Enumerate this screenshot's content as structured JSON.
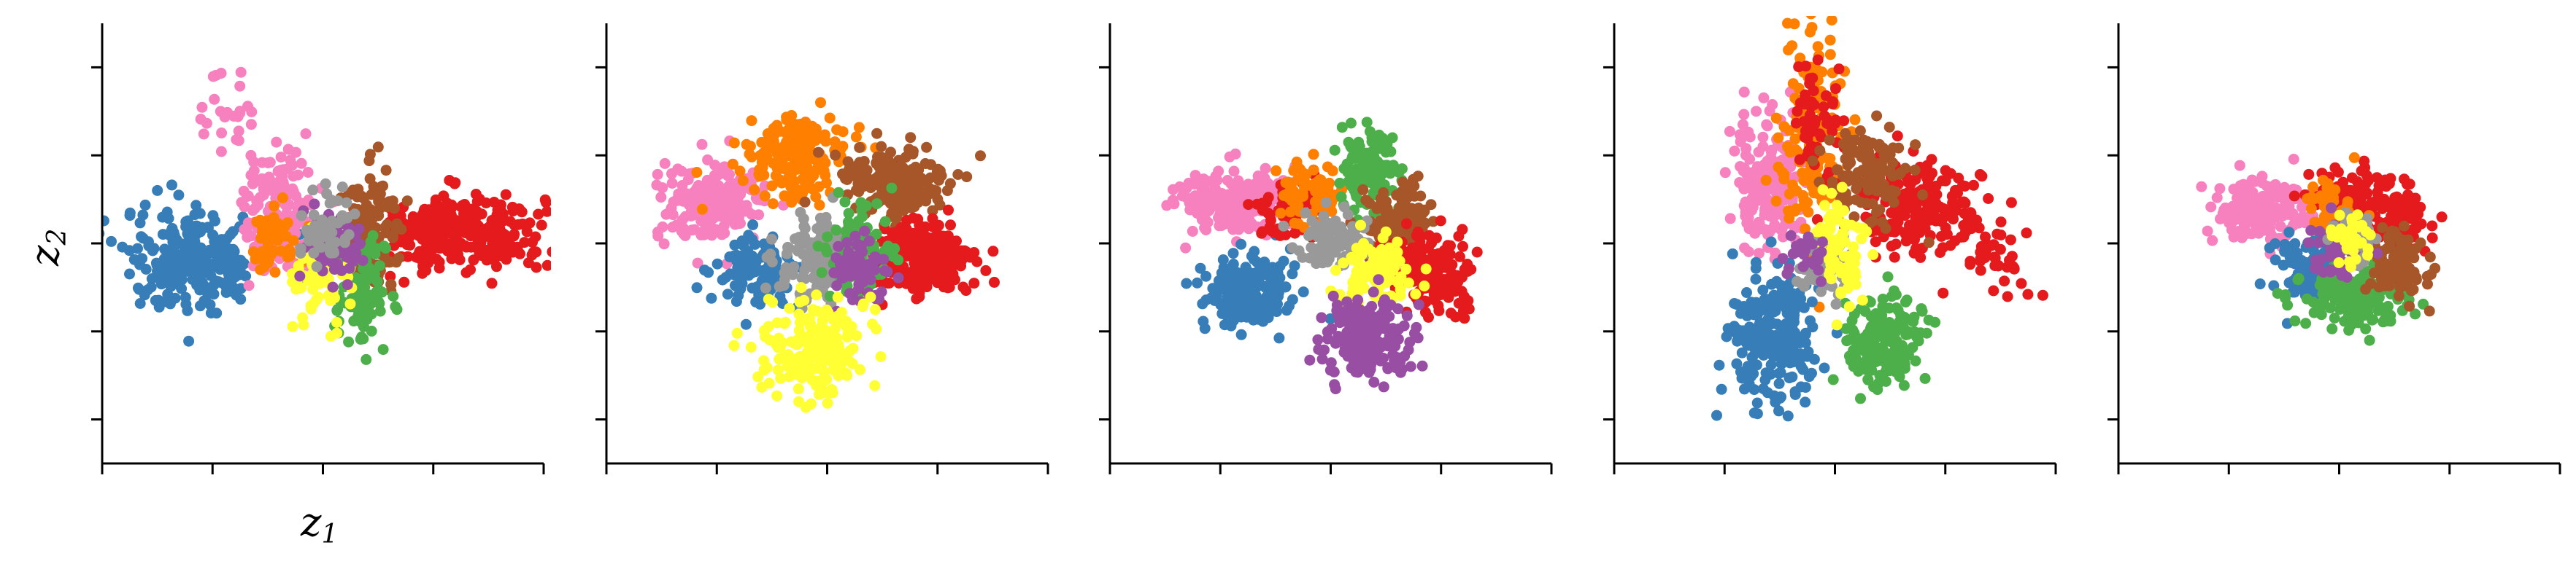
{
  "figure": {
    "xlabel_main": "z",
    "xlabel_sub": "1",
    "ylabel_main": "z",
    "ylabel_sub": "2"
  },
  "colors": {
    "red": "#e41a1c",
    "blue": "#377eb8",
    "green": "#4daf4a",
    "purple": "#984ea3",
    "orange": "#ff7f00",
    "yellow": "#ffff33",
    "brown": "#a65628",
    "pink": "#f781bf",
    "grey": "#999999"
  },
  "chart_data": [
    {
      "type": "scatter",
      "title": "",
      "xlabel": "z1",
      "ylabel": "z2",
      "xlim": [
        -4,
        4
      ],
      "ylim": [
        -4,
        4
      ],
      "grid": false,
      "clusters": [
        {
          "color": "red",
          "cx": 2.4,
          "cy": 0.2,
          "sx": 0.8,
          "sy": 0.35,
          "n": 320
        },
        {
          "color": "blue",
          "cx": -2.3,
          "cy": -0.3,
          "sx": 0.65,
          "sy": 0.45,
          "n": 260
        },
        {
          "color": "pink",
          "cx": -0.8,
          "cy": 0.6,
          "sx": 0.35,
          "sy": 0.55,
          "n": 150
        },
        {
          "color": "pink",
          "cx": -1.7,
          "cy": 2.4,
          "sx": 0.25,
          "sy": 0.4,
          "n": 25
        },
        {
          "color": "brown",
          "cx": 0.9,
          "cy": 0.2,
          "sx": 0.28,
          "sy": 0.55,
          "n": 130
        },
        {
          "color": "green",
          "cx": 0.7,
          "cy": -0.9,
          "sx": 0.22,
          "sy": 0.45,
          "n": 110
        },
        {
          "color": "orange",
          "cx": -0.9,
          "cy": 0.0,
          "sx": 0.25,
          "sy": 0.35,
          "n": 60
        },
        {
          "color": "yellow",
          "cx": 0.0,
          "cy": -0.6,
          "sx": 0.25,
          "sy": 0.4,
          "n": 60
        },
        {
          "color": "purple",
          "cx": 0.2,
          "cy": 0.0,
          "sx": 0.25,
          "sy": 0.35,
          "n": 70
        },
        {
          "color": "grey",
          "cx": 0.1,
          "cy": 0.3,
          "sx": 0.25,
          "sy": 0.3,
          "n": 50
        }
      ]
    },
    {
      "type": "scatter",
      "title": "",
      "xlabel": "",
      "ylabel": "",
      "xlim": [
        -4,
        4
      ],
      "ylim": [
        -4,
        4
      ],
      "grid": false,
      "clusters": [
        {
          "color": "pink",
          "cx": -2.1,
          "cy": 0.7,
          "sx": 0.5,
          "sy": 0.35,
          "n": 190
        },
        {
          "color": "orange",
          "cx": -0.5,
          "cy": 1.6,
          "sx": 0.45,
          "sy": 0.35,
          "n": 190
        },
        {
          "color": "brown",
          "cx": 1.2,
          "cy": 1.1,
          "sx": 0.5,
          "sy": 0.35,
          "n": 190
        },
        {
          "color": "red",
          "cx": 1.7,
          "cy": -0.3,
          "sx": 0.5,
          "sy": 0.35,
          "n": 240
        },
        {
          "color": "blue",
          "cx": -1.3,
          "cy": -0.5,
          "sx": 0.35,
          "sy": 0.3,
          "n": 110
        },
        {
          "color": "grey",
          "cx": -0.1,
          "cy": -0.3,
          "sx": 0.4,
          "sy": 0.4,
          "n": 130
        },
        {
          "color": "green",
          "cx": 0.6,
          "cy": -0.1,
          "sx": 0.3,
          "sy": 0.4,
          "n": 90
        },
        {
          "color": "purple",
          "cx": 0.5,
          "cy": -0.5,
          "sx": 0.25,
          "sy": 0.3,
          "n": 70
        },
        {
          "color": "yellow",
          "cx": -0.2,
          "cy": -1.9,
          "sx": 0.45,
          "sy": 0.45,
          "n": 200
        }
      ]
    },
    {
      "type": "scatter",
      "title": "",
      "xlabel": "",
      "ylabel": "",
      "xlim": [
        -4,
        4
      ],
      "ylim": [
        -4,
        4
      ],
      "grid": false,
      "clusters": [
        {
          "color": "pink",
          "cx": -1.8,
          "cy": 0.8,
          "sx": 0.5,
          "sy": 0.3,
          "n": 190
        },
        {
          "color": "blue",
          "cx": -1.5,
          "cy": -0.9,
          "sx": 0.4,
          "sy": 0.35,
          "n": 170
        },
        {
          "color": "red",
          "cx": -0.8,
          "cy": 0.6,
          "sx": 0.25,
          "sy": 0.3,
          "n": 60
        },
        {
          "color": "orange",
          "cx": -0.4,
          "cy": 0.9,
          "sx": 0.3,
          "sy": 0.3,
          "n": 70
        },
        {
          "color": "green",
          "cx": 0.7,
          "cy": 1.4,
          "sx": 0.25,
          "sy": 0.35,
          "n": 110
        },
        {
          "color": "brown",
          "cx": 1.2,
          "cy": 0.3,
          "sx": 0.35,
          "sy": 0.35,
          "n": 120
        },
        {
          "color": "red",
          "cx": 1.9,
          "cy": -0.5,
          "sx": 0.4,
          "sy": 0.35,
          "n": 160
        },
        {
          "color": "grey",
          "cx": 0.0,
          "cy": 0.1,
          "sx": 0.3,
          "sy": 0.25,
          "n": 80
        },
        {
          "color": "yellow",
          "cx": 0.8,
          "cy": -0.5,
          "sx": 0.35,
          "sy": 0.3,
          "n": 110
        },
        {
          "color": "purple",
          "cx": 0.7,
          "cy": -1.7,
          "sx": 0.4,
          "sy": 0.35,
          "n": 200
        }
      ]
    },
    {
      "type": "scatter",
      "title": "",
      "xlabel": "",
      "ylabel": "",
      "xlim": [
        -4,
        4
      ],
      "ylim": [
        -4,
        4
      ],
      "grid": false,
      "clusters": [
        {
          "color": "pink",
          "cx": -1.2,
          "cy": 1.1,
          "sx": 0.35,
          "sy": 0.6,
          "n": 190
        },
        {
          "color": "orange",
          "cx": -0.4,
          "cy": 1.9,
          "sx": 0.3,
          "sy": 0.9,
          "n": 170
        },
        {
          "color": "red",
          "cx": 1.5,
          "cy": 0.7,
          "sx": 0.55,
          "sy": 0.4,
          "n": 200
        },
        {
          "color": "red",
          "cx": 3.0,
          "cy": -0.3,
          "sx": 0.45,
          "sy": 0.35,
          "n": 40
        },
        {
          "color": "red",
          "cx": -0.3,
          "cy": 2.2,
          "sx": 0.2,
          "sy": 0.6,
          "n": 60
        },
        {
          "color": "brown",
          "cx": 0.6,
          "cy": 1.2,
          "sx": 0.35,
          "sy": 0.45,
          "n": 120
        },
        {
          "color": "blue",
          "cx": -1.1,
          "cy": -1.7,
          "sx": 0.4,
          "sy": 0.6,
          "n": 240
        },
        {
          "color": "green",
          "cx": 0.9,
          "cy": -1.8,
          "sx": 0.35,
          "sy": 0.4,
          "n": 170
        },
        {
          "color": "grey",
          "cx": -0.2,
          "cy": -0.4,
          "sx": 0.25,
          "sy": 0.3,
          "n": 70
        },
        {
          "color": "yellow",
          "cx": 0.1,
          "cy": 0.0,
          "sx": 0.2,
          "sy": 0.5,
          "n": 70
        },
        {
          "color": "purple",
          "cx": -0.5,
          "cy": -0.2,
          "sx": 0.2,
          "sy": 0.2,
          "n": 25
        }
      ]
    },
    {
      "type": "scatter",
      "title": "",
      "xlabel": "",
      "ylabel": "",
      "xlim": [
        -4,
        4
      ],
      "ylim": [
        -4,
        4
      ],
      "grid": false,
      "clusters": [
        {
          "color": "pink",
          "cx": -1.4,
          "cy": 0.6,
          "sx": 0.45,
          "sy": 0.3,
          "n": 180
        },
        {
          "color": "red",
          "cx": 0.2,
          "cy": 0.8,
          "sx": 0.4,
          "sy": 0.3,
          "n": 120
        },
        {
          "color": "red",
          "cx": 1.0,
          "cy": 0.4,
          "sx": 0.3,
          "sy": 0.3,
          "n": 80
        },
        {
          "color": "orange",
          "cx": -0.1,
          "cy": 0.5,
          "sx": 0.25,
          "sy": 0.3,
          "n": 60
        },
        {
          "color": "blue",
          "cx": -0.5,
          "cy": -0.5,
          "sx": 0.35,
          "sy": 0.3,
          "n": 120
        },
        {
          "color": "green",
          "cx": 0.2,
          "cy": -1.0,
          "sx": 0.45,
          "sy": 0.3,
          "n": 160
        },
        {
          "color": "brown",
          "cx": 1.1,
          "cy": -0.4,
          "sx": 0.3,
          "sy": 0.3,
          "n": 100
        },
        {
          "color": "purple",
          "cx": 0.0,
          "cy": -0.1,
          "sx": 0.25,
          "sy": 0.25,
          "n": 60
        },
        {
          "color": "grey",
          "cx": 0.3,
          "cy": 0.1,
          "sx": 0.2,
          "sy": 0.2,
          "n": 40
        },
        {
          "color": "yellow",
          "cx": 0.2,
          "cy": 0.1,
          "sx": 0.2,
          "sy": 0.25,
          "n": 40
        }
      ]
    }
  ]
}
